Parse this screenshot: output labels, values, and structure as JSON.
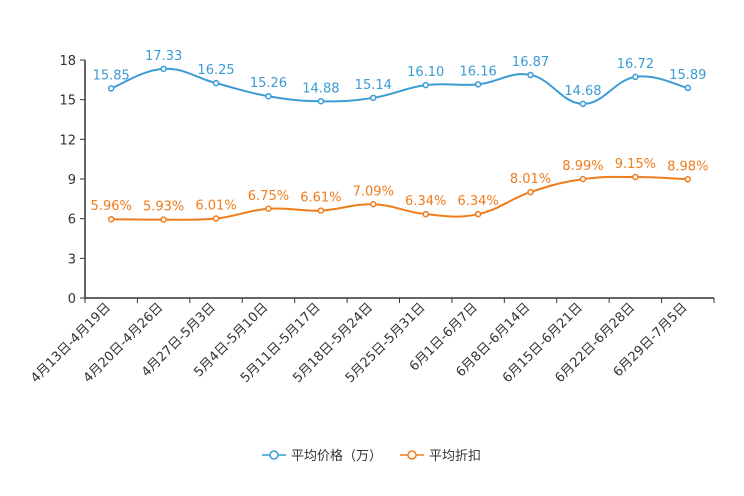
{
  "chart_data": {
    "type": "line",
    "title": "",
    "xlabel": "",
    "ylabel": "",
    "ylim": [
      0,
      18
    ],
    "yticks": [
      0,
      3,
      6,
      9,
      12,
      15,
      18
    ],
    "grid": false,
    "legend_position": "bottom-center",
    "categories": [
      "4月13日-4月19日",
      "4月20日-4月26日",
      "4月27日-5月3日",
      "5月4日-5月10日",
      "5月11日-5月17日",
      "5月18日-5月24日",
      "5月25日-5月31日",
      "6月1日-6月7日",
      "6月8日-6月14日",
      "6月15日-6月21日",
      "6月22日-6月28日",
      "6月29日-7月5日"
    ],
    "series": [
      {
        "name": "平均价格（万）",
        "color": "#3a9bd5",
        "values": [
          15.85,
          17.33,
          16.25,
          15.26,
          14.88,
          15.14,
          16.1,
          16.16,
          16.87,
          14.68,
          16.72,
          15.89
        ],
        "labels": [
          "15.85",
          "17.33",
          "16.25",
          "15.26",
          "14.88",
          "15.14",
          "16.10",
          "16.16",
          "16.87",
          "14.68",
          "16.72",
          "15.89"
        ]
      },
      {
        "name": "平均折扣",
        "color": "#f07c1c",
        "values": [
          5.96,
          5.93,
          6.01,
          6.75,
          6.61,
          7.09,
          6.34,
          6.34,
          8.01,
          8.99,
          9.15,
          8.98
        ],
        "labels": [
          "5.96%",
          "5.93%",
          "6.01%",
          "6.75%",
          "6.61%",
          "7.09%",
          "6.34%",
          "6.34%",
          "8.01%",
          "8.99%",
          "9.15%",
          "8.98%"
        ]
      }
    ]
  }
}
